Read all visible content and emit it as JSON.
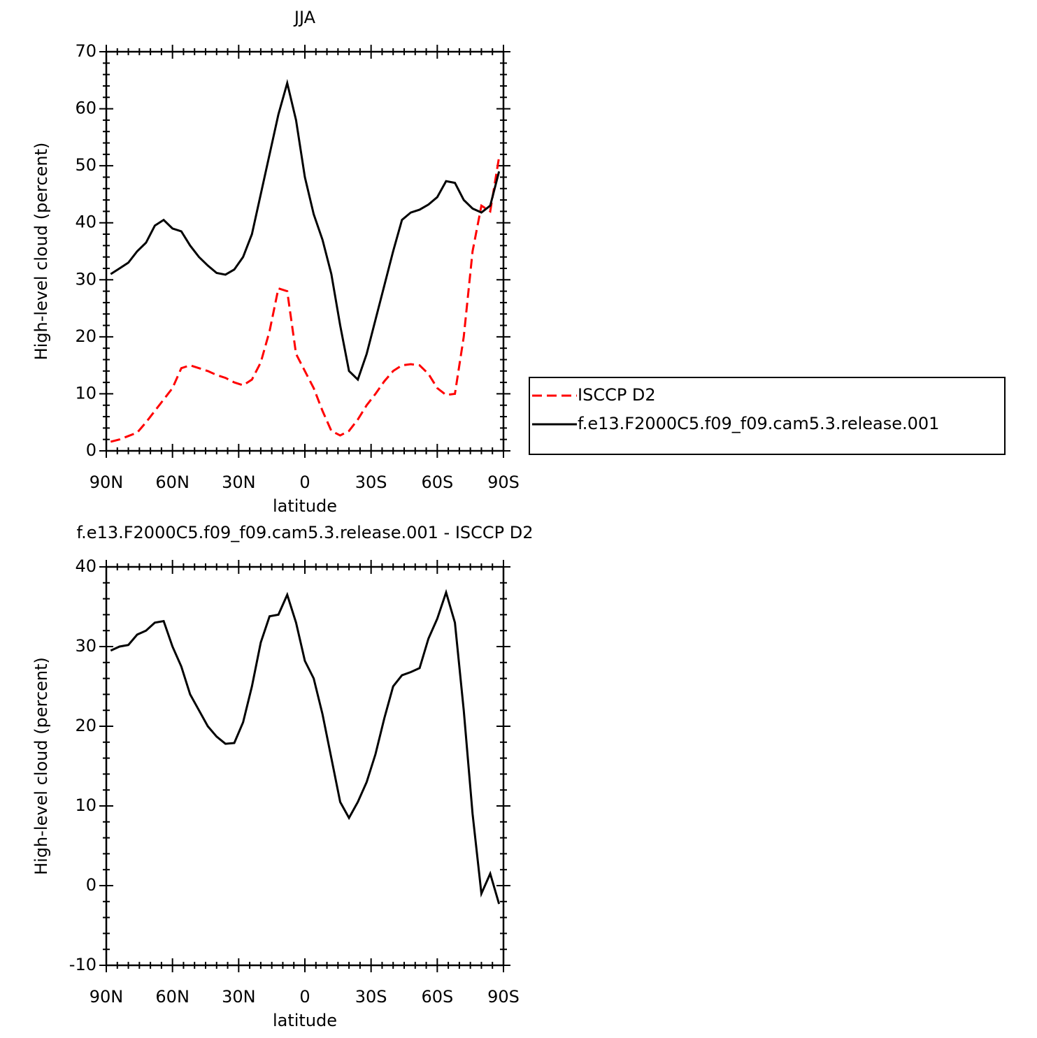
{
  "chart_data": [
    {
      "type": "line",
      "title": "JJA",
      "xlabel": "latitude",
      "ylabel": "High-level cloud (percent)",
      "x": [
        88,
        84,
        80,
        76,
        72,
        68,
        64,
        60,
        56,
        52,
        48,
        44,
        40,
        36,
        32,
        28,
        24,
        20,
        16,
        12,
        8,
        4,
        0,
        -4,
        -8,
        -12,
        -16,
        -20,
        -24,
        -28,
        -32,
        -36,
        -40,
        -44,
        -48,
        -52,
        -56,
        -60,
        -64,
        -68,
        -72,
        -76,
        -80,
        -84,
        -88
      ],
      "xlim": [
        90,
        -90
      ],
      "xticks": [
        {
          "value": 90,
          "label": "90N"
        },
        {
          "value": 60,
          "label": "60N"
        },
        {
          "value": 30,
          "label": "30N"
        },
        0,
        {
          "value": -30,
          "label": "30S"
        },
        {
          "value": -60,
          "label": "60S"
        },
        {
          "value": -90,
          "label": "90S"
        }
      ],
      "ylim": [
        0,
        70
      ],
      "yticks": [
        0,
        10,
        20,
        30,
        40,
        50,
        60,
        70
      ],
      "legend": "right",
      "series": [
        {
          "name": "ISCCP D2",
          "color": "#ff0000",
          "linestyle": "dashed",
          "values": [
            1.6,
            2,
            2.6,
            3.2,
            5,
            7,
            9,
            11,
            14.5,
            15,
            14.5,
            14,
            13.3,
            12.8,
            12,
            11.5,
            12.5,
            15.5,
            21,
            28.5,
            28,
            17,
            14,
            11,
            7,
            3.5,
            2.7,
            3.5,
            5.5,
            8,
            10,
            12.2,
            14,
            15,
            15.2,
            15,
            13.5,
            11,
            9.8,
            10,
            20,
            35,
            43,
            42,
            51.5
          ]
        },
        {
          "name": "f.e13.F2000C5.f09_f09.cam5.3.release.001",
          "color": "#000000",
          "linestyle": "solid",
          "values": [
            31,
            32,
            33,
            35,
            36.5,
            39.5,
            40.5,
            39,
            38.5,
            36,
            34,
            32.5,
            31.2,
            30.9,
            31.8,
            34,
            38,
            45,
            52,
            59,
            64.5,
            58,
            48,
            41.5,
            37,
            31,
            22,
            14,
            12.5,
            17,
            23,
            29,
            35,
            40.5,
            41.8,
            42.3,
            43.2,
            44.5,
            47.3,
            47,
            44,
            42.5,
            41.8,
            43,
            49
          ]
        }
      ]
    },
    {
      "type": "line",
      "title": "f.e13.F2000C5.f09_f09.cam5.3.release.001 - ISCCP D2",
      "xlabel": "latitude",
      "ylabel": "High-level cloud (percent)",
      "x": [
        88,
        84,
        80,
        76,
        72,
        68,
        64,
        60,
        56,
        52,
        48,
        44,
        40,
        36,
        32,
        28,
        24,
        20,
        16,
        12,
        8,
        4,
        0,
        -4,
        -8,
        -12,
        -16,
        -20,
        -24,
        -28,
        -32,
        -36,
        -40,
        -44,
        -48,
        -52,
        -56,
        -60,
        -64,
        -68,
        -72,
        -76,
        -80,
        -84,
        -88
      ],
      "xlim": [
        90,
        -90
      ],
      "xticks": [
        {
          "value": 90,
          "label": "90N"
        },
        {
          "value": 60,
          "label": "60N"
        },
        {
          "value": 30,
          "label": "30N"
        },
        0,
        {
          "value": -30,
          "label": "30S"
        },
        {
          "value": -60,
          "label": "60S"
        },
        {
          "value": -90,
          "label": "90S"
        }
      ],
      "ylim": [
        -10,
        40
      ],
      "yticks": [
        -10,
        0,
        10,
        20,
        30,
        40
      ],
      "series": [
        {
          "color": "#000000",
          "linestyle": "solid",
          "values": [
            29.5,
            30,
            30.2,
            31.5,
            32,
            33,
            33.2,
            30,
            27.5,
            24,
            22,
            20,
            18.7,
            17.8,
            17.9,
            20.5,
            25,
            30.5,
            33.8,
            34,
            36.5,
            33,
            28.2,
            26,
            21.5,
            16,
            10.5,
            8.5,
            10.5,
            13,
            16.5,
            21,
            25,
            26.4,
            26.8,
            27.3,
            31,
            33.5,
            36.8,
            33,
            22,
            9,
            -1,
            1.5,
            -2.3
          ]
        }
      ]
    }
  ]
}
